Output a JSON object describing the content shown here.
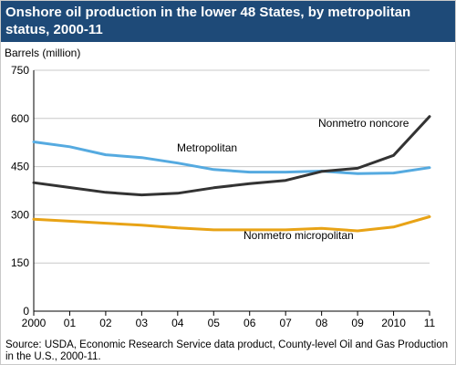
{
  "title": "Onshore oil production in the lower 48 States, by metropolitan status, 2000-11",
  "source": "Source: USDA, Economic Research Service data product, County-level Oil and Gas Production in the U.S., 2000-11.",
  "chart_data": {
    "type": "line",
    "ylabel": "Barrels (million)",
    "xlabel": "",
    "categories": [
      "2000",
      "01",
      "02",
      "03",
      "04",
      "05",
      "06",
      "07",
      "08",
      "09",
      "2010",
      "11"
    ],
    "yticks": [
      "0",
      "150",
      "300",
      "450",
      "600",
      "750"
    ],
    "ylim": [
      0,
      750
    ],
    "grid": "horizontal",
    "series": [
      {
        "name": "Metropolitan",
        "color": "#55aae0",
        "values": [
          527,
          512,
          487,
          478,
          461,
          441,
          433,
          433,
          436,
          428,
          430,
          447
        ]
      },
      {
        "name": "Nonmetro noncore",
        "color": "#333333",
        "values": [
          400,
          385,
          370,
          362,
          367,
          384,
          397,
          407,
          435,
          445,
          485,
          606
        ]
      },
      {
        "name": "Nonmetro micropolitan",
        "color": "#e8a316",
        "values": [
          286,
          280,
          274,
          268,
          259,
          253,
          253,
          253,
          258,
          250,
          262,
          294
        ]
      }
    ]
  }
}
